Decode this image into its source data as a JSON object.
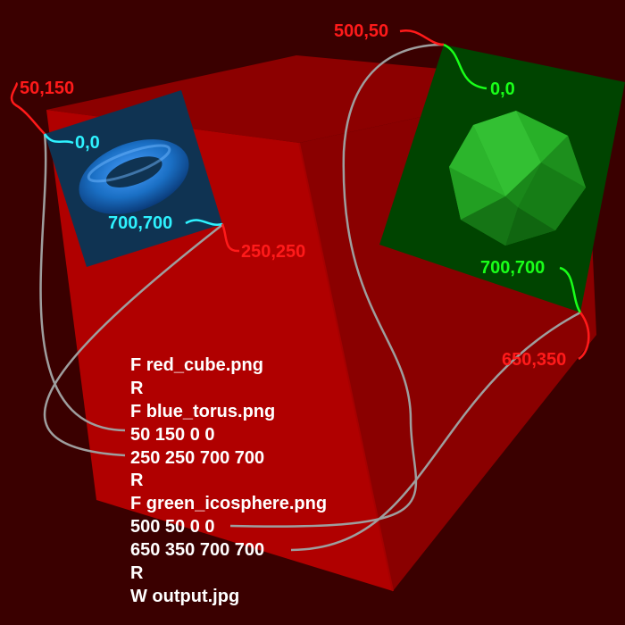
{
  "colors": {
    "background": "#3a0000",
    "cube_front": "#b00000",
    "cube_top": "#8c0000",
    "cube_side": "#8a0000",
    "torus_panel": "#0f3352",
    "torus": "#1a6fc4",
    "icosphere_panel": "#004400",
    "icosphere": "#22a822",
    "red_labels": "#ff1a1a",
    "cyan_labels": "#2ef2ff",
    "green_labels": "#19ff19",
    "connector_lines": "#9e9e9e",
    "script_text": "#ffffff"
  },
  "labels": {
    "torus_dest_top_left": "50,150",
    "torus_src_top_left": "0,0",
    "torus_src_bottom_right": "700,700",
    "torus_dest_bottom_right": "250,250",
    "ico_dest_top_left": "500,50",
    "ico_src_top_left": "0,0",
    "ico_src_bottom_right": "700,700",
    "ico_dest_bottom_right": "650,350"
  },
  "script_lines": [
    "F red_cube.png",
    "R",
    "F blue_torus.png",
    "50 150 0 0",
    "250 250 700 700",
    "R",
    "F green_icosphere.png",
    "500 50 0 0",
    "650 350 700 700",
    "R",
    "W output.jpg"
  ]
}
